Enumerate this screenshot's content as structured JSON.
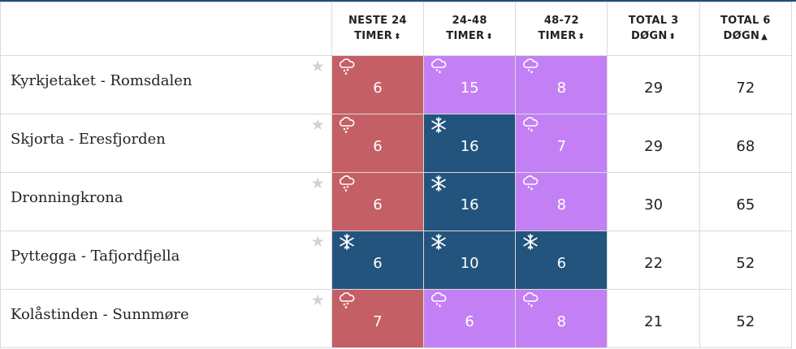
{
  "columns": [
    {
      "line1": "NESTE 24",
      "line2": "TIMER",
      "sort": "⬍"
    },
    {
      "line1": "24-48",
      "line2": "TIMER",
      "sort": "⬍"
    },
    {
      "line1": "48-72",
      "line2": "TIMER",
      "sort": "⬍"
    },
    {
      "line1": "TOTAL 3",
      "line2": "DØGN",
      "sort": "⬍"
    },
    {
      "line1": "TOTAL 6",
      "line2": "DØGN",
      "sort": "▲"
    }
  ],
  "colors": {
    "rain": "#c55f66",
    "mixed": "#c380f5",
    "snow": "#23547e"
  },
  "rows": [
    {
      "name": "Kyrkjetaket - Romsdalen",
      "star": "★",
      "periods": [
        {
          "type": "rain",
          "icon": "rain-cloud-icon",
          "value": "6"
        },
        {
          "type": "mix",
          "icon": "sleet-cloud-icon",
          "value": "15"
        },
        {
          "type": "mix",
          "icon": "sleet-cloud-icon",
          "value": "8"
        }
      ],
      "total3": "29",
      "total6": "72"
    },
    {
      "name": "Skjorta - Eresfjorden",
      "star": "★",
      "periods": [
        {
          "type": "rain",
          "icon": "rain-cloud-icon",
          "value": "6"
        },
        {
          "type": "snow",
          "icon": "snowflake-icon",
          "value": "16"
        },
        {
          "type": "mix",
          "icon": "sleet-cloud-icon",
          "value": "7"
        }
      ],
      "total3": "29",
      "total6": "68"
    },
    {
      "name": "Dronningkrona",
      "star": "★",
      "periods": [
        {
          "type": "rain",
          "icon": "rain-cloud-icon",
          "value": "6"
        },
        {
          "type": "snow",
          "icon": "snowflake-icon",
          "value": "16"
        },
        {
          "type": "mix",
          "icon": "sleet-cloud-icon",
          "value": "8"
        }
      ],
      "total3": "30",
      "total6": "65"
    },
    {
      "name": "Pyttegga - Tafjordfjella",
      "star": "★",
      "periods": [
        {
          "type": "snow",
          "icon": "snowflake-icon",
          "value": "6"
        },
        {
          "type": "snow",
          "icon": "snowflake-icon",
          "value": "10"
        },
        {
          "type": "snow",
          "icon": "snowflake-icon",
          "value": "6"
        }
      ],
      "total3": "22",
      "total6": "52"
    },
    {
      "name": "Kolåstinden - Sunnmøre",
      "star": "★",
      "periods": [
        {
          "type": "rain",
          "icon": "rain-cloud-icon",
          "value": "7"
        },
        {
          "type": "mix",
          "icon": "sleet-cloud-icon",
          "value": "6"
        },
        {
          "type": "mix",
          "icon": "sleet-cloud-icon",
          "value": "8"
        }
      ],
      "total3": "21",
      "total6": "52"
    }
  ]
}
